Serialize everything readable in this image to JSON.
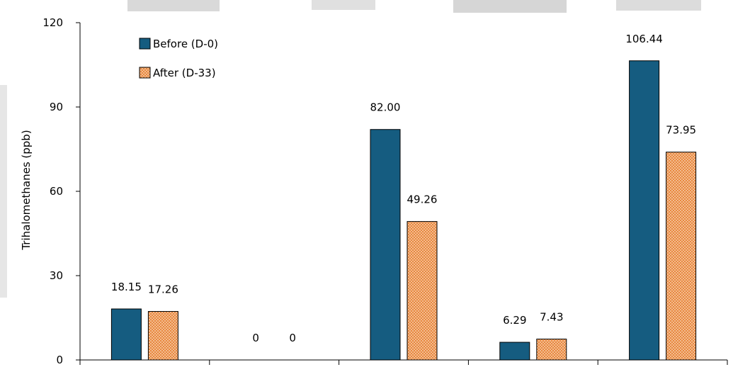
{
  "chart_data": {
    "type": "bar",
    "title": "",
    "xlabel": "",
    "ylabel": "Trihalomethanes (ppb)",
    "ylim": [
      0,
      120
    ],
    "yticks": [
      0,
      30,
      60,
      90,
      120
    ],
    "categories": [
      "",
      "",
      "",
      "",
      ""
    ],
    "series": [
      {
        "name": "Before (D-0)",
        "values": [
          18.15,
          0,
          82.0,
          6.29,
          106.44
        ],
        "labels": [
          "18.15",
          "0",
          "82.00",
          "6.29",
          "106.44"
        ],
        "color": "#155c80"
      },
      {
        "name": "After (D-33)",
        "values": [
          17.26,
          0,
          49.26,
          7.43,
          73.95
        ],
        "labels": [
          "17.26",
          "0",
          "49.26",
          "7.43",
          "73.95"
        ],
        "color": "#e88840"
      }
    ],
    "grid": false,
    "legend_position": "top-left"
  }
}
